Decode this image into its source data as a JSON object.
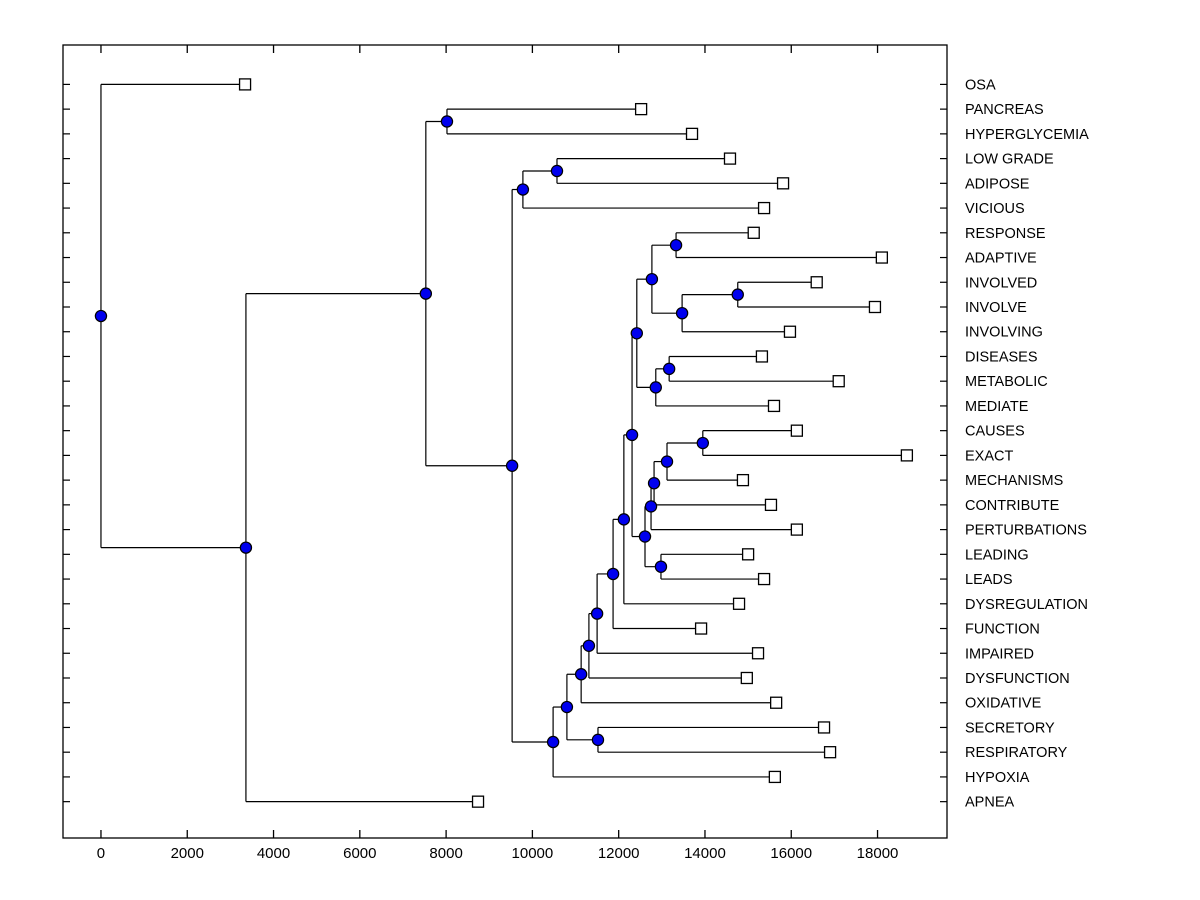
{
  "figure": {
    "background": "#ffffff",
    "description": "Hierarchical cluster tree (phylogenetic-style dendrogram) of keywords, leaves on the right"
  },
  "chart_data": {
    "type": "dendrogram",
    "orientation": "root-left, leaves-right",
    "title": "",
    "xlabel": "",
    "ylabel": "",
    "grid": false,
    "x_axis": {
      "ticks": [
        0,
        2000,
        4000,
        6000,
        8000,
        10000,
        12000,
        14000,
        16000,
        18000
      ],
      "tick_labels": [
        "0",
        "2000",
        "4000",
        "6000",
        "8000",
        "10000",
        "12000",
        "14000",
        "16000",
        "18000"
      ],
      "xlim": [
        -880,
        19610
      ]
    },
    "leaf_order": [
      "OSA",
      "PANCREAS",
      "HYPERGLYCEMIA",
      "LOW GRADE",
      "ADIPOSE",
      "VICIOUS",
      "RESPONSE",
      "ADAPTIVE",
      "INVOLVED",
      "INVOLVE",
      "INVOLVING",
      "DISEASES",
      "METABOLIC",
      "MEDIATE",
      "CAUSES",
      "EXACT",
      "MECHANISMS",
      "CONTRIBUTE",
      "PERTURBATIONS",
      "LEADING",
      "LEADS",
      "DYSREGULATION",
      "FUNCTION",
      "IMPAIRED",
      "DYSFUNCTION",
      "OXIDATIVE",
      "SECRETORY",
      "RESPIRATORY",
      "HYPOXIA",
      "APNEA"
    ],
    "leaf_distances": {
      "OSA": 3340,
      "PANCREAS": 12520,
      "HYPERGLYCEMIA": 13700,
      "LOW GRADE": 14580,
      "ADIPOSE": 15810,
      "VICIOUS": 15370,
      "RESPONSE": 15130,
      "ADAPTIVE": 18100,
      "INVOLVED": 16590,
      "INVOLVE": 17940,
      "INVOLVING": 15970,
      "DISEASES": 15320,
      "METABOLIC": 17100,
      "MEDIATE": 15600,
      "CAUSES": 16130,
      "EXACT": 18680,
      "MECHANISMS": 14880,
      "CONTRIBUTE": 15530,
      "PERTURBATIONS": 16130,
      "LEADING": 15000,
      "LEADS": 15370,
      "DYSREGULATION": 14790,
      "FUNCTION": 13910,
      "IMPAIRED": 15230,
      "DYSFUNCTION": 14970,
      "OXIDATIVE": 15650,
      "SECRETORY": 16760,
      "RESPIRATORY": 16900,
      "HYPOXIA": 15620,
      "APNEA": 8740
    },
    "tree": {
      "d": 0,
      "children": [
        {
          "label": "OSA"
        },
        {
          "d": 3360,
          "children": [
            {
              "d": 7530,
              "children": [
                {
                  "d": 8020,
                  "children": [
                    {
                      "label": "PANCREAS"
                    },
                    {
                      "label": "HYPERGLYCEMIA"
                    }
                  ]
                },
                {
                  "d": 9530,
                  "children": [
                    {
                      "d": 9780,
                      "children": [
                        {
                          "d": 10570,
                          "children": [
                            {
                              "label": "LOW GRADE"
                            },
                            {
                              "label": "ADIPOSE"
                            }
                          ]
                        },
                        {
                          "label": "VICIOUS"
                        }
                      ]
                    },
                    {
                      "d": 10480,
                      "children": [
                        {
                          "d": 10800,
                          "children": [
                            {
                              "d": 11130,
                              "children": [
                                {
                                  "d": 11310,
                                  "children": [
                                    {
                                      "d": 11500,
                                      "children": [
                                        {
                                          "d": 11870,
                                          "children": [
                                            {
                                              "d": 12120,
                                              "children": [
                                                {
                                                  "d": 12310,
                                                  "children": [
                                                    {
                                                      "d": 12420,
                                                      "children": [
                                                        {
                                                          "d": 12770,
                                                          "children": [
                                                            {
                                                              "d": 13330,
                                                              "children": [
                                                                {
                                                                  "label": "RESPONSE"
                                                                },
                                                                {
                                                                  "label": "ADAPTIVE"
                                                                }
                                                              ]
                                                            },
                                                            {
                                                              "d": 13470,
                                                              "children": [
                                                                {
                                                                  "d": 14760,
                                                                  "children": [
                                                                    {
                                                                      "label": "INVOLVED"
                                                                    },
                                                                    {
                                                                      "label": "INVOLVE"
                                                                    }
                                                                  ]
                                                                },
                                                                {
                                                                  "label": "INVOLVING"
                                                                }
                                                              ]
                                                            }
                                                          ]
                                                        },
                                                        {
                                                          "d": 12860,
                                                          "children": [
                                                            {
                                                              "d": 13170,
                                                              "children": [
                                                                {
                                                                  "label": "DISEASES"
                                                                },
                                                                {
                                                                  "label": "METABOLIC"
                                                                }
                                                              ]
                                                            },
                                                            {
                                                              "label": "MEDIATE"
                                                            }
                                                          ]
                                                        }
                                                      ]
                                                    },
                                                    {
                                                      "d": 12610,
                                                      "children": [
                                                        {
                                                          "d": 12750,
                                                          "children": [
                                                            {
                                                              "d": 12820,
                                                              "children": [
                                                                {
                                                                  "d": 13120,
                                                                  "children": [
                                                                    {
                                                                      "d": 13950,
                                                                      "children": [
                                                                        {
                                                                          "label": "CAUSES"
                                                                        },
                                                                        {
                                                                          "label": "EXACT"
                                                                        }
                                                                      ]
                                                                    },
                                                                    {
                                                                      "label": "MECHANISMS"
                                                                    }
                                                                  ]
                                                                },
                                                                {
                                                                  "label": "CONTRIBUTE"
                                                                }
                                                              ]
                                                            },
                                                            {
                                                              "label": "PERTURBATIONS"
                                                            }
                                                          ]
                                                        },
                                                        {
                                                          "d": 12980,
                                                          "children": [
                                                            {
                                                              "label": "LEADING"
                                                            },
                                                            {
                                                              "label": "LEADS"
                                                            }
                                                          ]
                                                        }
                                                      ]
                                                    }
                                                  ]
                                                },
                                                {
                                                  "label": "DYSREGULATION"
                                                }
                                              ]
                                            },
                                            {
                                              "label": "FUNCTION"
                                            }
                                          ]
                                        },
                                        {
                                          "label": "IMPAIRED"
                                        }
                                      ]
                                    },
                                    {
                                      "label": "DYSFUNCTION"
                                    }
                                  ]
                                },
                                {
                                  "label": "OXIDATIVE"
                                }
                              ]
                            },
                            {
                              "d": 11520,
                              "children": [
                                {
                                  "label": "SECRETORY"
                                },
                                {
                                  "label": "RESPIRATORY"
                                }
                              ]
                            }
                          ]
                        },
                        {
                          "label": "HYPOXIA"
                        }
                      ]
                    }
                  ]
                }
              ]
            },
            {
              "label": "APNEA"
            }
          ]
        }
      ]
    },
    "style": {
      "line_color": "#000000",
      "branch_dot_fill": "#0000ee",
      "branch_dot_stroke": "#000000",
      "leaf_square_fill": "#ffffff",
      "leaf_square_stroke": "#000000",
      "axis_color": "#000000",
      "legend": "none"
    }
  }
}
